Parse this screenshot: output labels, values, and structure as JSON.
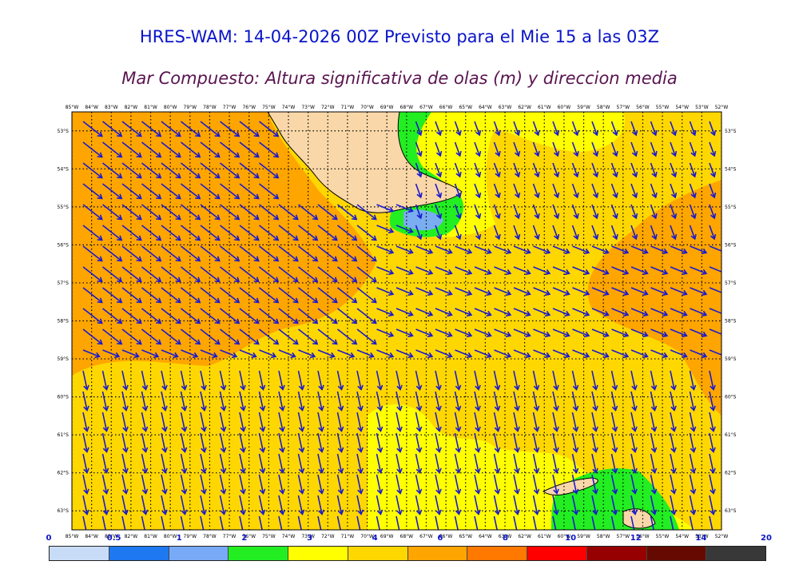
{
  "title": "HRES-WAM: 14-04-2026 00Z Previsto para el Mie 15 a las 03Z",
  "subtitle": "Mar Compuesto: Altura significativa de olas (m) y direccion media",
  "map": {
    "lon_labels": [
      "85°W",
      "84°W",
      "83°W",
      "82°W",
      "81°W",
      "80°W",
      "79°W",
      "78°W",
      "77°W",
      "76°W",
      "75°W",
      "74°W",
      "73°W",
      "72°W",
      "71°W",
      "70°W",
      "69°W",
      "68°W",
      "67°W",
      "66°W",
      "65°W",
      "64°W",
      "63°W",
      "62°W",
      "61°W",
      "60°W",
      "59°W",
      "58°W",
      "57°W",
      "56°W",
      "55°W",
      "54°W",
      "53°W",
      "52°W"
    ],
    "lat_labels": [
      "53°S",
      "54°S",
      "55°S",
      "56°S",
      "57°S",
      "58°S",
      "59°S",
      "60°S",
      "61°S",
      "62°S",
      "63°S"
    ],
    "lon_range": [
      -85,
      -52
    ],
    "lat_range": [
      -52.5,
      -63.5
    ],
    "colors": {
      "ocean_base": "#ffd700",
      "high_waves": "#ffa500",
      "low_waves": "#ffff00",
      "very_low": "#22ee22",
      "calm": "#7aaef0",
      "land": "#fad7a8",
      "arrow": "#1a1ad0"
    }
  },
  "legend": {
    "labels": [
      "0",
      "0.5",
      "1",
      "2",
      "3",
      "4",
      "6",
      "8",
      "10",
      "12",
      "14",
      "20"
    ],
    "colors": [
      "#c8dcf8",
      "#1e78f0",
      "#78aaf8",
      "#22ee22",
      "#ffff00",
      "#ffd700",
      "#ffa500",
      "#ff7800",
      "#ff0000",
      "#960000",
      "#640a00",
      "#383838"
    ]
  }
}
